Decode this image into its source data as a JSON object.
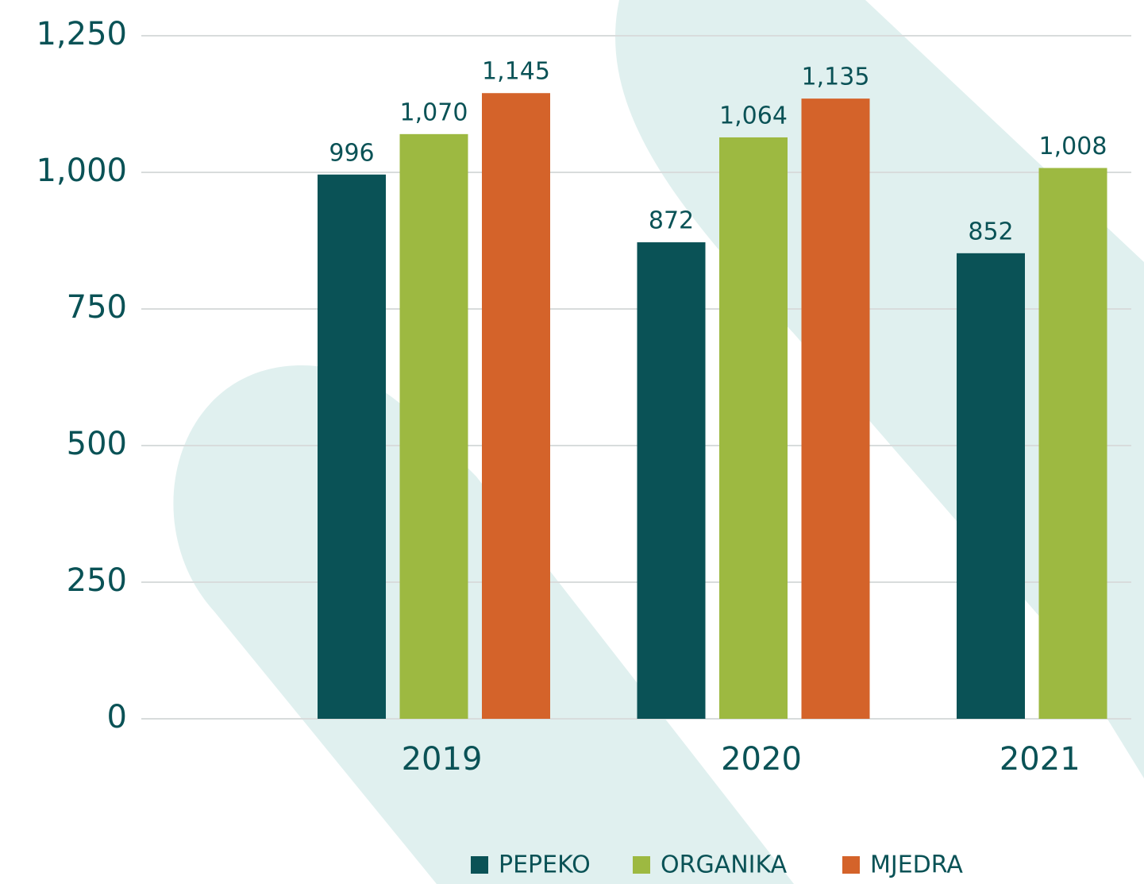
{
  "chart_data": {
    "type": "bar",
    "categories": [
      "2019",
      "2020",
      "2021"
    ],
    "series": [
      {
        "name": "PEPEKO",
        "color": "#0a5256",
        "values": [
          996,
          872,
          852
        ],
        "value_labels": [
          "996",
          "872",
          "852"
        ]
      },
      {
        "name": "ORGANIKA",
        "color": "#9db941",
        "values": [
          1070,
          1064,
          1008
        ],
        "value_labels": [
          "1,070",
          "1,064",
          "1,008"
        ]
      },
      {
        "name": "MJEDRA",
        "color": "#d4632a",
        "values": [
          1145,
          1135,
          null
        ],
        "value_labels": [
          "1,145",
          "1,135",
          null
        ]
      }
    ],
    "ylim": [
      0,
      1250
    ],
    "yticks": [
      0,
      250,
      500,
      750,
      {
        "value": 1000,
        "label": "1,000"
      },
      {
        "value": 1250,
        "label": "1,250"
      }
    ],
    "grid": true,
    "legend": "bottom"
  }
}
